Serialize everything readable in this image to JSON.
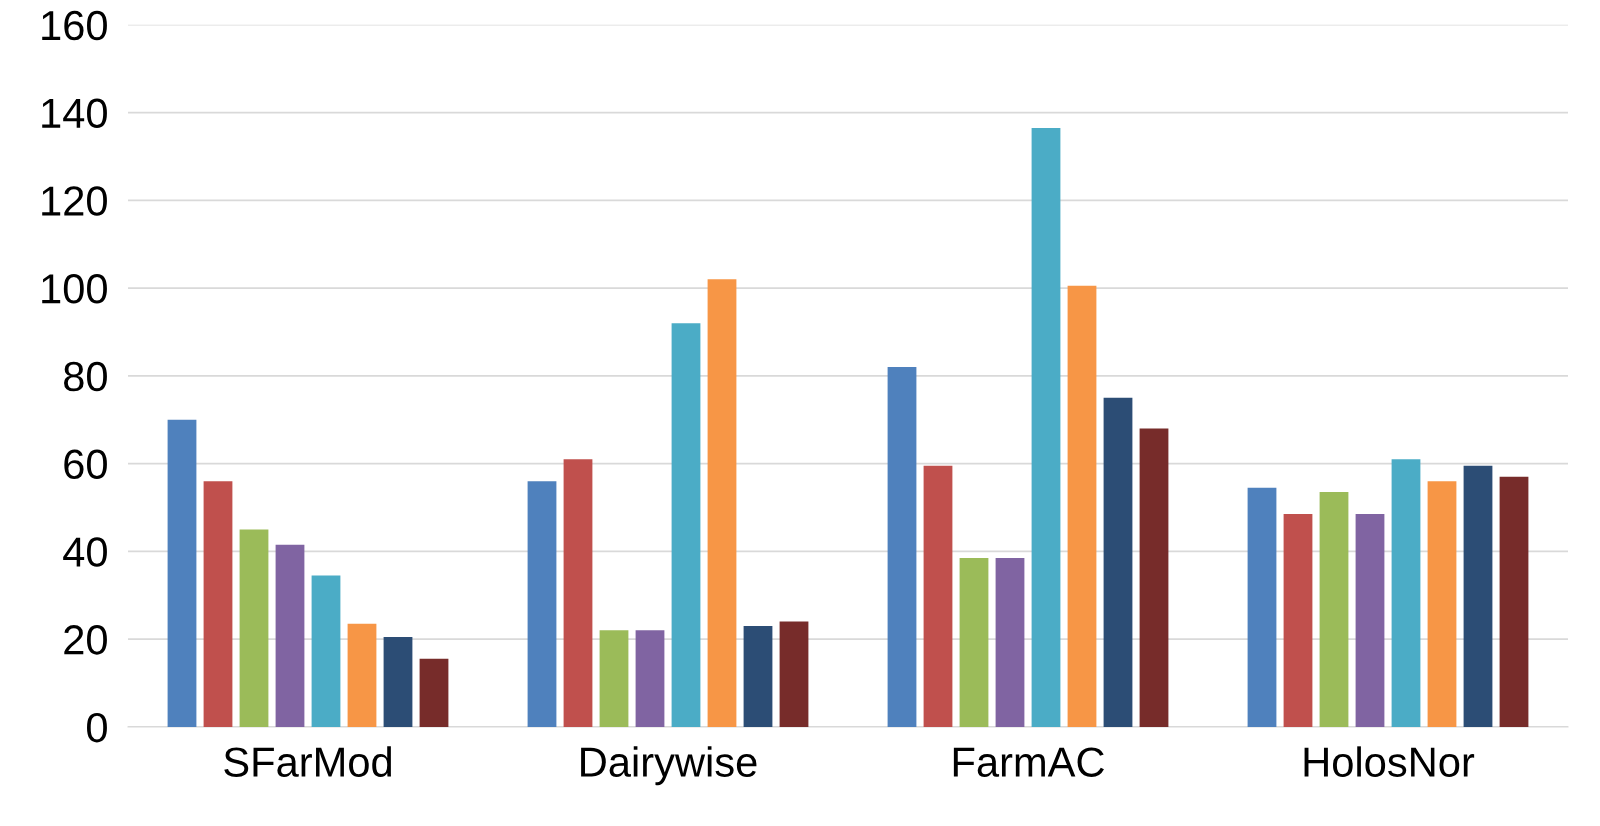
{
  "chart_data": {
    "type": "bar",
    "categories": [
      "SFarMod",
      "Dairywise",
      "FarmAC",
      "HolosNor"
    ],
    "series": [
      {
        "color": "#4f81bd",
        "values": [
          70,
          56,
          82,
          54.5
        ]
      },
      {
        "color": "#c0504d",
        "values": [
          56,
          61,
          59.5,
          48.5
        ]
      },
      {
        "color": "#9bbb59",
        "values": [
          45,
          22,
          38.5,
          53.5
        ]
      },
      {
        "color": "#8064a2",
        "values": [
          41.5,
          22,
          38.5,
          48.5
        ]
      },
      {
        "color": "#4bacc6",
        "values": [
          34.5,
          92,
          136.5,
          61
        ]
      },
      {
        "color": "#f79646",
        "values": [
          23.5,
          102,
          100.5,
          56
        ]
      },
      {
        "color": "#2c4d75",
        "values": [
          20.5,
          23,
          75,
          59.5
        ]
      },
      {
        "color": "#772c2a",
        "values": [
          15.5,
          24,
          68,
          57
        ]
      }
    ],
    "ylim": [
      0,
      160
    ],
    "yticks": [
      0,
      20,
      40,
      60,
      80,
      100,
      120,
      140,
      160
    ],
    "grid": "y"
  }
}
